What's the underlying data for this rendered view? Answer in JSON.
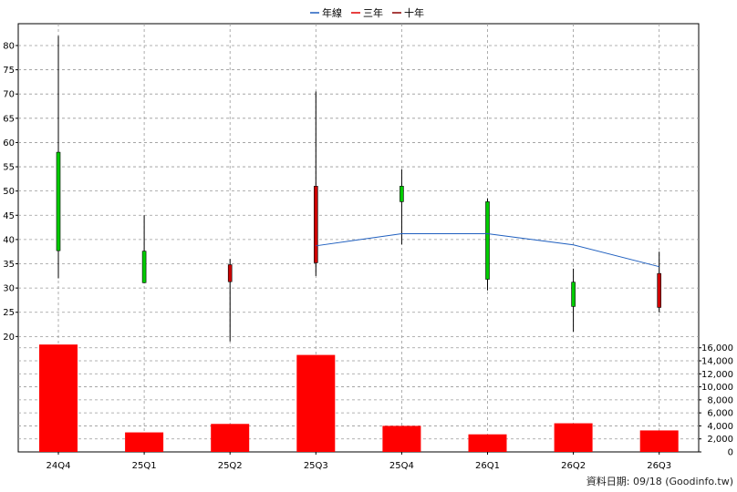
{
  "chart_data": {
    "type": "candlestick",
    "legend": [
      {
        "name": "年線",
        "color": "#1f5fbf"
      },
      {
        "name": "三年",
        "color": "#e00000"
      },
      {
        "name": "十年",
        "color": "#8b0000"
      }
    ],
    "legend_position": "top-center",
    "categories": [
      "24Q4",
      "25Q1",
      "25Q2",
      "25Q3",
      "25Q4",
      "26Q1",
      "26Q2",
      "26Q3"
    ],
    "price": {
      "ylim": [
        18,
        83
      ],
      "ticks": [
        20,
        25,
        30,
        35,
        40,
        45,
        50,
        55,
        60,
        65,
        70,
        75,
        80
      ],
      "candles": [
        {
          "open": 58.0,
          "high": 82.0,
          "low": 32.0,
          "close": 37.7
        },
        {
          "open": 37.6,
          "high": 45.0,
          "low": 31.0,
          "close": 31.1
        },
        {
          "open": 31.3,
          "high": 36.0,
          "low": 19.0,
          "close": 34.8
        },
        {
          "open": 35.2,
          "high": 70.5,
          "low": 32.5,
          "close": 51.0
        },
        {
          "open": 51.0,
          "high": 54.5,
          "low": 39.0,
          "close": 47.8
        },
        {
          "open": 47.8,
          "high": 48.5,
          "low": 29.5,
          "close": 31.8
        },
        {
          "open": 31.2,
          "high": 34.0,
          "low": 21.0,
          "close": 26.2
        },
        {
          "open": 26.0,
          "high": 37.5,
          "low": 25.0,
          "close": 33.0
        }
      ],
      "annual_line": [
        null,
        null,
        null,
        38.7,
        41.2,
        41.2,
        38.9,
        34.4
      ]
    },
    "volume": {
      "ylim": [
        0,
        16800
      ],
      "ticks": [
        0,
        2000,
        4000,
        6000,
        8000,
        10000,
        12000,
        14000,
        16000
      ],
      "tick_labels": [
        "0",
        "2,000",
        "4,000",
        "6,000",
        "8,000",
        "10,000",
        "12,000",
        "14,000",
        "16,000"
      ],
      "values": [
        16500,
        3000,
        4300,
        14900,
        4000,
        2700,
        4400,
        3300
      ],
      "color": "#ff0000"
    },
    "up_color": "#cc0000",
    "down_color": "#00cc00",
    "grid": true,
    "footer": "資料日期: 09/18  (Goodinfo.tw)"
  }
}
